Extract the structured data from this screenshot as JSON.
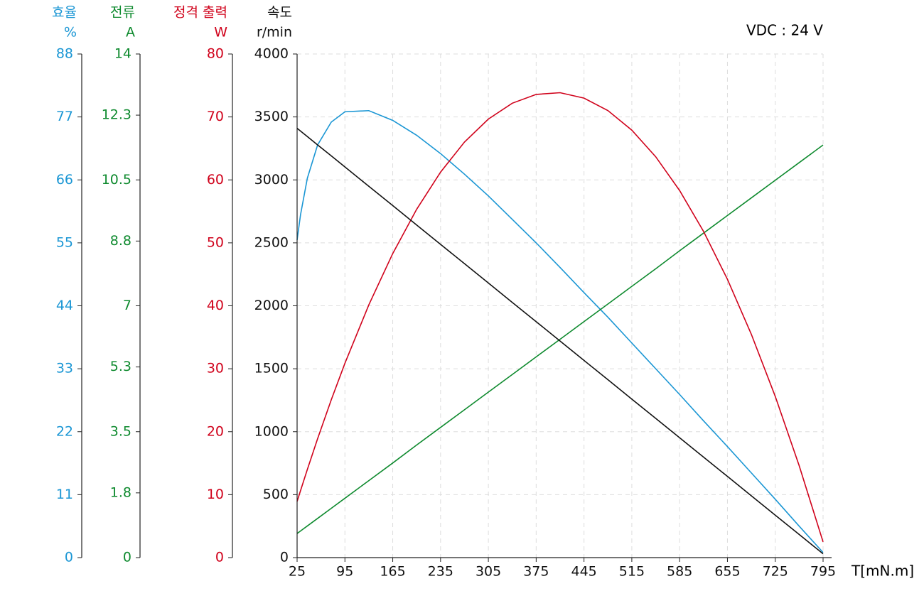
{
  "chart_data": {
    "type": "line",
    "annotation": "VDC : 24 V",
    "x_label": "T[mN.m]",
    "x": [
      25,
      30,
      40,
      55,
      75,
      95,
      130,
      165,
      200,
      235,
      270,
      305,
      340,
      375,
      410,
      445,
      480,
      515,
      550,
      585,
      620,
      655,
      690,
      725,
      760,
      795
    ],
    "xlim": [
      25,
      795
    ],
    "xticks": [
      25,
      95,
      165,
      235,
      305,
      375,
      445,
      515,
      585,
      655,
      725,
      795
    ],
    "grid": true,
    "axes": [
      {
        "title": "효율",
        "unit": "%",
        "color": "#1a96d4",
        "ylim": [
          0,
          88
        ],
        "yticks": [
          0,
          11,
          22,
          33,
          44,
          55,
          66,
          77,
          88
        ],
        "values": [
          55.5,
          59.9,
          66.3,
          72.1,
          76.1,
          77.9,
          78.1,
          76.4,
          73.8,
          70.6,
          67.0,
          63.2,
          59.1,
          55.0,
          50.7,
          46.3,
          42.0,
          37.5,
          33.0,
          28.5,
          23.9,
          19.4,
          14.8,
          10.2,
          5.5,
          0.9
        ]
      },
      {
        "title": "전류",
        "unit": "A",
        "color": "#0e8a2e",
        "ylim": [
          0,
          14
        ],
        "yticks": [
          0,
          1.8,
          3.5,
          5.3,
          7,
          8.8,
          10.5,
          12.3,
          14
        ],
        "values": [
          0.67,
          0.74,
          0.88,
          1.09,
          1.37,
          1.65,
          2.14,
          2.63,
          3.13,
          3.62,
          4.11,
          4.6,
          5.09,
          5.58,
          6.07,
          6.56,
          7.05,
          7.54,
          8.03,
          8.53,
          9.02,
          9.51,
          10.0,
          10.49,
          10.98,
          11.47
        ]
      },
      {
        "title": "정격 출력",
        "unit": "W",
        "color": "#d0021b",
        "ylim": [
          0,
          80
        ],
        "yticks": [
          0,
          10,
          20,
          30,
          40,
          50,
          60,
          70,
          80
        ],
        "values": [
          8.93,
          10.64,
          14.01,
          18.88,
          25.06,
          30.87,
          40.15,
          48.3,
          55.33,
          61.23,
          66.01,
          69.66,
          72.18,
          73.58,
          73.85,
          72.99,
          71.01,
          67.9,
          63.67,
          58.31,
          51.82,
          44.21,
          35.47,
          25.61,
          14.61,
          2.5
        ]
      },
      {
        "title": "속도",
        "unit": "r/min",
        "color": "#111111",
        "ylim": [
          0,
          4000
        ],
        "yticks": [
          0,
          500,
          1000,
          1500,
          2000,
          2500,
          3000,
          3500,
          4000
        ],
        "values": [
          3410,
          3388,
          3344,
          3278,
          3191,
          3103,
          2949,
          2796,
          2642,
          2488,
          2335,
          2181,
          2027,
          1874,
          1720,
          1566,
          1413,
          1259,
          1106,
          952,
          798,
          645,
          491,
          337,
          184,
          30
        ]
      }
    ]
  }
}
